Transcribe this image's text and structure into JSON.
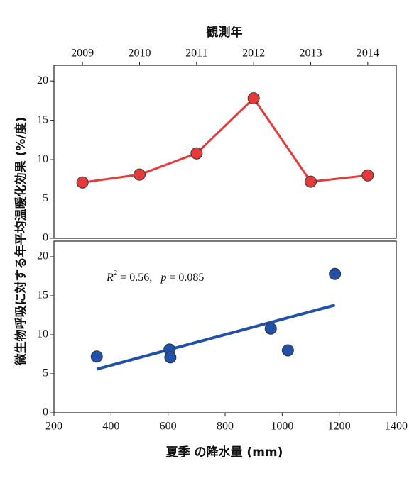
{
  "chart_data": [
    {
      "type": "line",
      "title": "観測年",
      "xaxis": "top",
      "x": [
        2009,
        2010,
        2011,
        2012,
        2013,
        2014
      ],
      "values": [
        7.1,
        8.1,
        10.8,
        17.8,
        7.2,
        8.0
      ],
      "color": "#e53a3a",
      "xlim": [
        2008.5,
        2014.5
      ],
      "xticks": [
        2009,
        2010,
        2011,
        2012,
        2013,
        2014
      ],
      "ylim": [
        0,
        22
      ],
      "yticks": [
        0,
        5,
        10,
        15,
        20
      ]
    },
    {
      "type": "scatter",
      "xaxis": "bottom",
      "xlabel": "夏季 の降水量 (mm)",
      "ylabel": "微生物呼吸に対する年平均温暖化効果 (%/度)",
      "x": [
        350,
        605,
        608,
        960,
        1020,
        1185
      ],
      "values": [
        7.2,
        8.1,
        7.1,
        10.8,
        8.0,
        17.8
      ],
      "color": "#2050a8",
      "fit": {
        "x": [
          350,
          1185
        ],
        "values": [
          5.6,
          13.8
        ],
        "color": "#2050a8"
      },
      "annotation": [
        "R",
        "2",
        " = 0.56,   ",
        "p",
        " = 0.085"
      ],
      "xlim": [
        200,
        1400
      ],
      "xticks": [
        200,
        400,
        600,
        800,
        1000,
        1200,
        1400
      ],
      "ylim": [
        0,
        22
      ],
      "yticks": [
        0,
        5,
        10,
        15,
        20
      ]
    }
  ]
}
